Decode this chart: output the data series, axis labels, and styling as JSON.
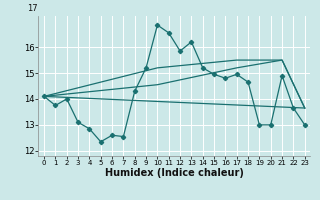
{
  "xlabel": "Humidex (Indice chaleur)",
  "background_color": "#cce8e8",
  "grid_color": "#ffffff",
  "line_color": "#1a7070",
  "xlim": [
    -0.5,
    23.5
  ],
  "ylim": [
    11.8,
    17.2
  ],
  "yticks": [
    12,
    13,
    14,
    15,
    16
  ],
  "xticks": [
    0,
    1,
    2,
    3,
    4,
    5,
    6,
    7,
    8,
    9,
    10,
    11,
    12,
    13,
    14,
    15,
    16,
    17,
    18,
    19,
    20,
    21,
    22,
    23
  ],
  "line1_x": [
    0,
    1,
    2,
    3,
    4,
    5,
    6,
    7,
    8,
    9,
    10,
    11,
    12,
    13,
    14,
    15,
    16,
    17,
    18,
    19,
    20,
    21,
    22,
    23
  ],
  "line1_y": [
    14.1,
    13.75,
    14.0,
    13.1,
    12.85,
    12.35,
    12.6,
    12.55,
    14.3,
    15.2,
    16.85,
    16.55,
    15.85,
    16.2,
    15.2,
    14.95,
    14.8,
    14.95,
    14.65,
    13.0,
    13.0,
    14.9,
    13.65,
    13.0
  ],
  "line2_x": [
    0,
    23
  ],
  "line2_y": [
    14.1,
    13.65
  ],
  "line3_x": [
    0,
    10,
    17,
    21,
    23
  ],
  "line3_y": [
    14.1,
    15.2,
    15.5,
    15.5,
    13.65
  ],
  "line4_x": [
    0,
    10,
    17,
    21,
    23
  ],
  "line4_y": [
    14.1,
    14.55,
    15.2,
    15.5,
    13.65
  ],
  "top_label": "17"
}
